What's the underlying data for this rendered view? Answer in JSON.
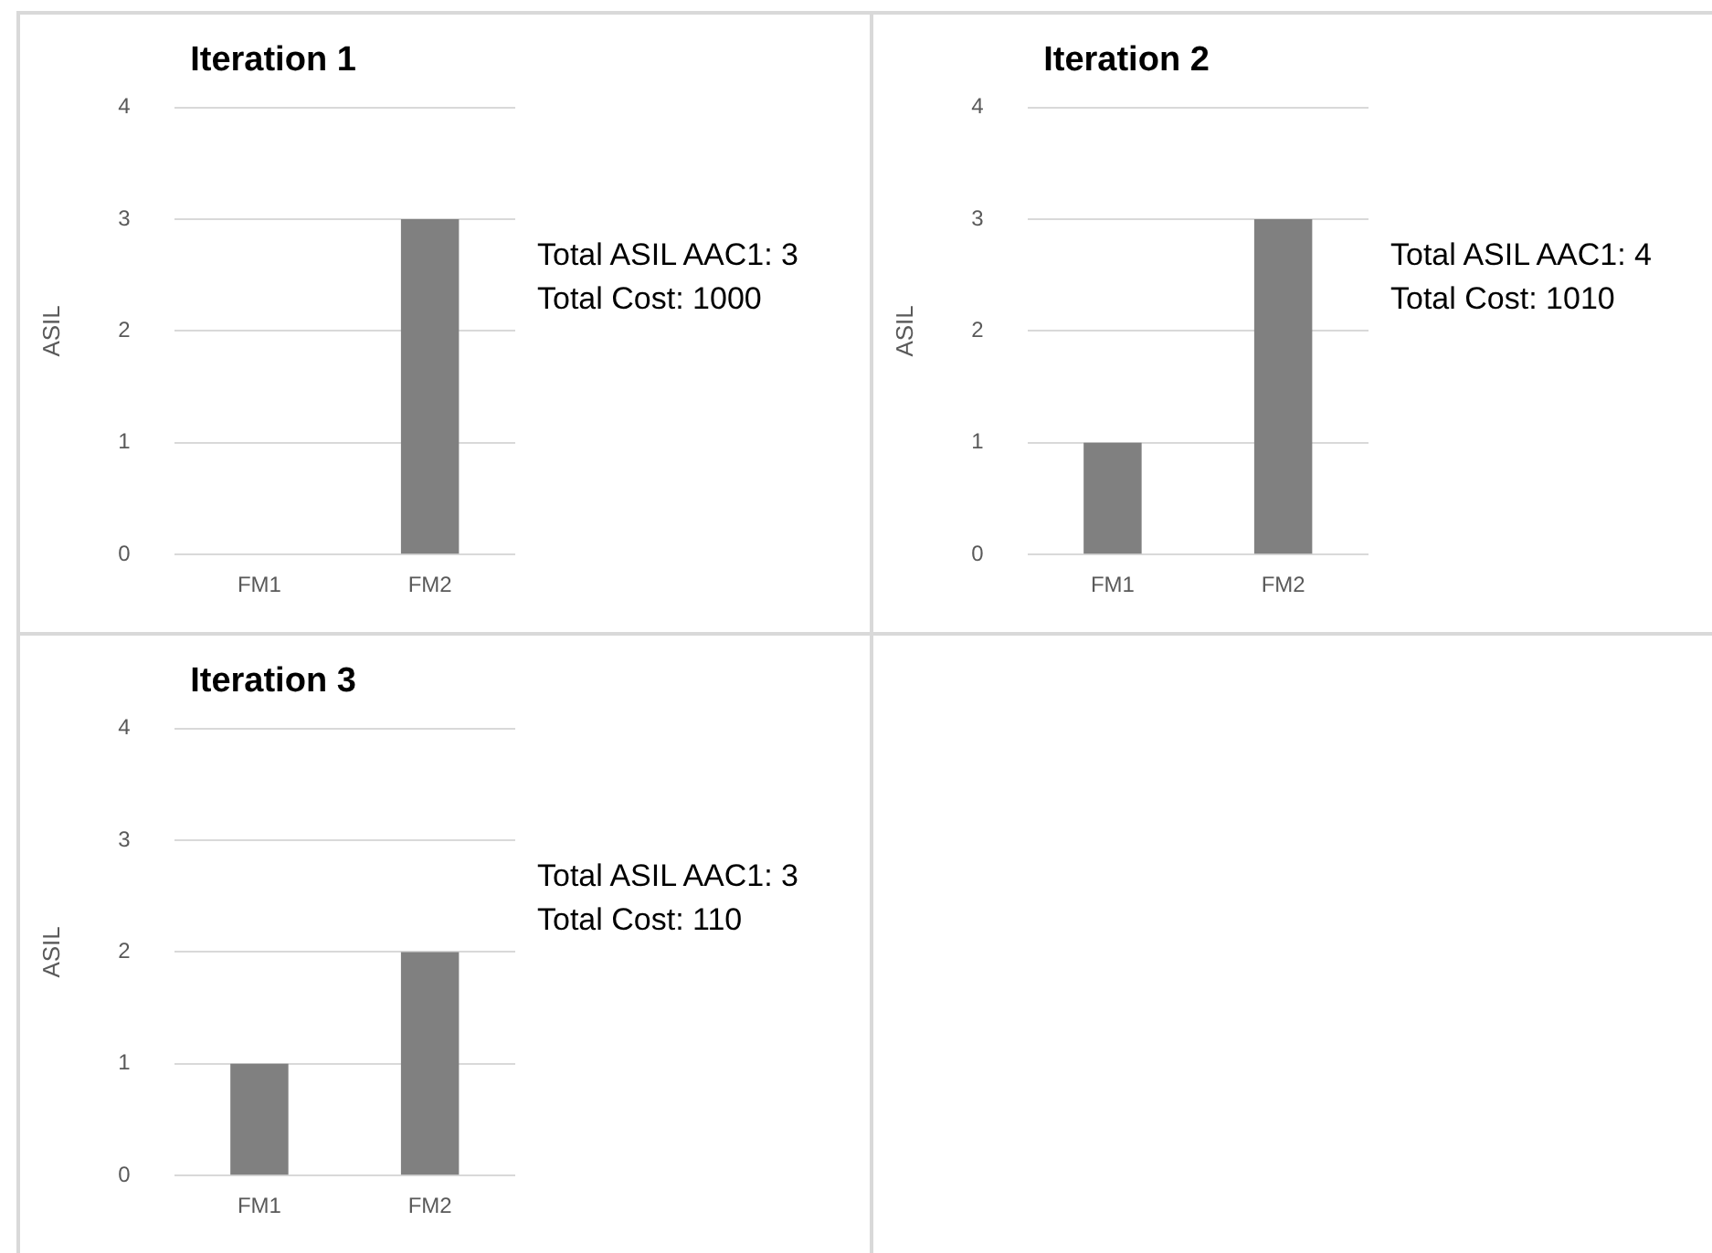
{
  "chart_data": [
    {
      "type": "bar",
      "title": "Iteration 1",
      "ylabel": "ASIL",
      "categories": [
        "FM1",
        "FM2"
      ],
      "values": [
        0,
        3
      ],
      "color": "#808080",
      "ylim": [
        0,
        4
      ],
      "yticks": [
        0,
        1,
        2,
        3,
        4
      ],
      "grid": "y",
      "legend": false,
      "annotations": [
        "Total ASIL AAC1: 3",
        "Total Cost: 1000"
      ]
    },
    {
      "type": "bar",
      "title": "Iteration 2",
      "ylabel": "ASIL",
      "categories": [
        "FM1",
        "FM2"
      ],
      "values": [
        1,
        3
      ],
      "color": "#808080",
      "ylim": [
        0,
        4
      ],
      "yticks": [
        0,
        1,
        2,
        3,
        4
      ],
      "grid": "y",
      "legend": false,
      "annotations": [
        "Total ASIL AAC1: 4",
        "Total Cost: 1010"
      ]
    },
    {
      "type": "bar",
      "title": "Iteration 3",
      "ylabel": "ASIL",
      "categories": [
        "FM1",
        "FM2"
      ],
      "values": [
        1,
        2
      ],
      "color": "#808080",
      "ylim": [
        0,
        4
      ],
      "yticks": [
        0,
        1,
        2,
        3,
        4
      ],
      "grid": "y",
      "legend": false,
      "annotations": [
        "Total ASIL AAC1: 3",
        "Total Cost: 110"
      ]
    }
  ]
}
